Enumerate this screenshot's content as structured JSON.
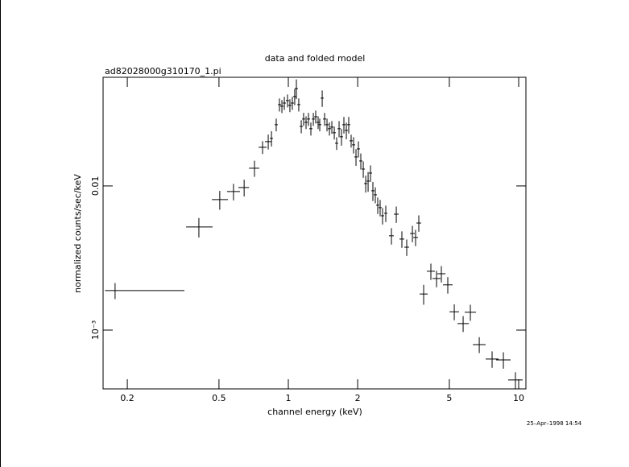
{
  "chart_data": {
    "type": "scatter",
    "title": "data and folded model",
    "subtitle": "ad82028000g310170_1.pi",
    "x_label": "channel energy (keV)",
    "y_label": "normalized counts/sec/keV",
    "timestamp": "25–Apr–1998 14:54",
    "x_scale": "log",
    "y_scale": "log",
    "color": "#000000",
    "xlim": [
      0.157,
      10.75
    ],
    "ylim": [
      0.000391,
      0.0567
    ],
    "xticks": [
      0.2,
      0.5,
      1,
      2,
      5,
      10
    ],
    "yticks": [
      {
        "value": 0.001,
        "label": "10⁻³"
      },
      0.01
    ],
    "x": [
      0.177,
      0.409,
      0.504,
      0.578,
      0.643,
      0.713,
      0.773,
      0.818,
      0.845,
      0.886,
      0.915,
      0.938,
      0.961,
      0.992,
      1.016,
      1.041,
      1.066,
      1.084,
      1.11,
      1.138,
      1.165,
      1.194,
      1.223,
      1.253,
      1.284,
      1.315,
      1.347,
      1.369,
      1.403,
      1.437,
      1.472,
      1.508,
      1.545,
      1.583,
      1.621,
      1.661,
      1.701,
      1.743,
      1.786,
      1.829,
      1.874,
      1.92,
      1.967,
      2.015,
      2.064,
      2.115,
      2.167,
      2.22,
      2.274,
      2.329,
      2.386,
      2.444,
      2.504,
      2.565,
      2.649,
      2.803,
      2.942,
      3.112,
      3.266,
      3.456,
      3.568,
      3.685,
      3.868,
      4.158,
      4.4,
      4.617,
      4.924,
      5.253,
      5.739,
      6.17,
      6.743,
      7.667,
      8.583,
      9.68
    ],
    "x_low": [
      0.16,
      0.36,
      0.466,
      0.542,
      0.607,
      0.675,
      0.743,
      0.792,
      0.832,
      0.872,
      0.901,
      0.923,
      0.946,
      0.976,
      1.0,
      1.025,
      1.049,
      1.067,
      1.093,
      1.12,
      1.147,
      1.175,
      1.204,
      1.233,
      1.264,
      1.294,
      1.326,
      1.347,
      1.381,
      1.414,
      1.449,
      1.484,
      1.521,
      1.558,
      1.595,
      1.635,
      1.674,
      1.716,
      1.758,
      1.8,
      1.844,
      1.89,
      1.936,
      1.983,
      2.031,
      2.082,
      2.133,
      2.185,
      2.238,
      2.292,
      2.348,
      2.406,
      2.465,
      2.525,
      2.607,
      2.737,
      2.873,
      3.039,
      3.189,
      3.375,
      3.484,
      3.599,
      3.716,
      3.994,
      4.227,
      4.435,
      4.694,
      5.008,
      5.424,
      5.832,
      6.325,
      7.192,
      7.984,
      9.005
    ],
    "x_high": [
      0.354,
      0.469,
      0.547,
      0.617,
      0.675,
      0.748,
      0.805,
      0.845,
      0.858,
      0.9,
      0.93,
      0.953,
      0.976,
      1.008,
      1.032,
      1.058,
      1.083,
      1.101,
      1.128,
      1.156,
      1.184,
      1.213,
      1.243,
      1.273,
      1.305,
      1.336,
      1.369,
      1.391,
      1.425,
      1.46,
      1.496,
      1.532,
      1.57,
      1.608,
      1.647,
      1.688,
      1.728,
      1.771,
      1.815,
      1.858,
      1.904,
      1.951,
      1.998,
      2.047,
      2.097,
      2.149,
      2.202,
      2.256,
      2.31,
      2.366,
      2.424,
      2.483,
      2.544,
      2.606,
      2.691,
      2.87,
      3.013,
      3.187,
      3.344,
      3.539,
      3.654,
      3.773,
      4.027,
      4.328,
      4.58,
      4.806,
      5.165,
      5.51,
      6.072,
      6.528,
      7.188,
      8.173,
      9.227,
      10.406
    ],
    "values": [
      0.00188,
      0.00519,
      0.00804,
      0.00914,
      0.00975,
      0.01327,
      0.01854,
      0.0203,
      0.02138,
      0.0266,
      0.03664,
      0.03573,
      0.03758,
      0.03908,
      0.03622,
      0.03758,
      0.04169,
      0.04742,
      0.03664,
      0.02588,
      0.02911,
      0.02761,
      0.02911,
      0.02495,
      0.02911,
      0.0302,
      0.02761,
      0.0266,
      0.04064,
      0.02911,
      0.0266,
      0.02495,
      0.02559,
      0.02339,
      0.01977,
      0.02495,
      0.02193,
      0.0266,
      0.02427,
      0.0266,
      0.02056,
      0.01928,
      0.01589,
      0.01807,
      0.0149,
      0.01309,
      0.01039,
      0.0108,
      0.01228,
      0.00926,
      0.00868,
      0.00735,
      0.00707,
      0.00621,
      0.00646,
      0.00451,
      0.00637,
      0.00428,
      0.00376,
      0.00468,
      0.00439,
      0.00553,
      0.00178,
      0.00256,
      0.00228,
      0.00246,
      0.00206,
      0.00134,
      0.00111,
      0.00133,
      0.000793,
      0.00063,
      0.000621,
      0.000451
    ],
    "yerr": [
      0.00024,
      0.0008,
      0.0012,
      0.0012,
      0.0013,
      0.0017,
      0.0019,
      0.0024,
      0.0026,
      0.0027,
      0.0038,
      0.0037,
      0.0039,
      0.004,
      0.0037,
      0.0039,
      0.0054,
      0.0074,
      0.0038,
      0.0027,
      0.003,
      0.0028,
      0.003,
      0.0026,
      0.003,
      0.0031,
      0.0028,
      0.0027,
      0.0053,
      0.003,
      0.0027,
      0.0026,
      0.0026,
      0.0024,
      0.002,
      0.0032,
      0.0029,
      0.0035,
      0.0032,
      0.0035,
      0.0021,
      0.0025,
      0.0021,
      0.0023,
      0.0019,
      0.0017,
      0.0014,
      0.0017,
      0.0016,
      0.0014,
      0.0011,
      0.00096,
      0.00092,
      0.00081,
      0.00084,
      0.00059,
      0.00083,
      0.00056,
      0.00049,
      0.00061,
      0.00057,
      0.00072,
      0.00028,
      0.00033,
      0.0003,
      0.00032,
      0.00027,
      0.00017,
      0.00014,
      0.00017,
      0.0001,
      8.2e-05,
      8.1e-05,
      5.9e-05
    ]
  }
}
